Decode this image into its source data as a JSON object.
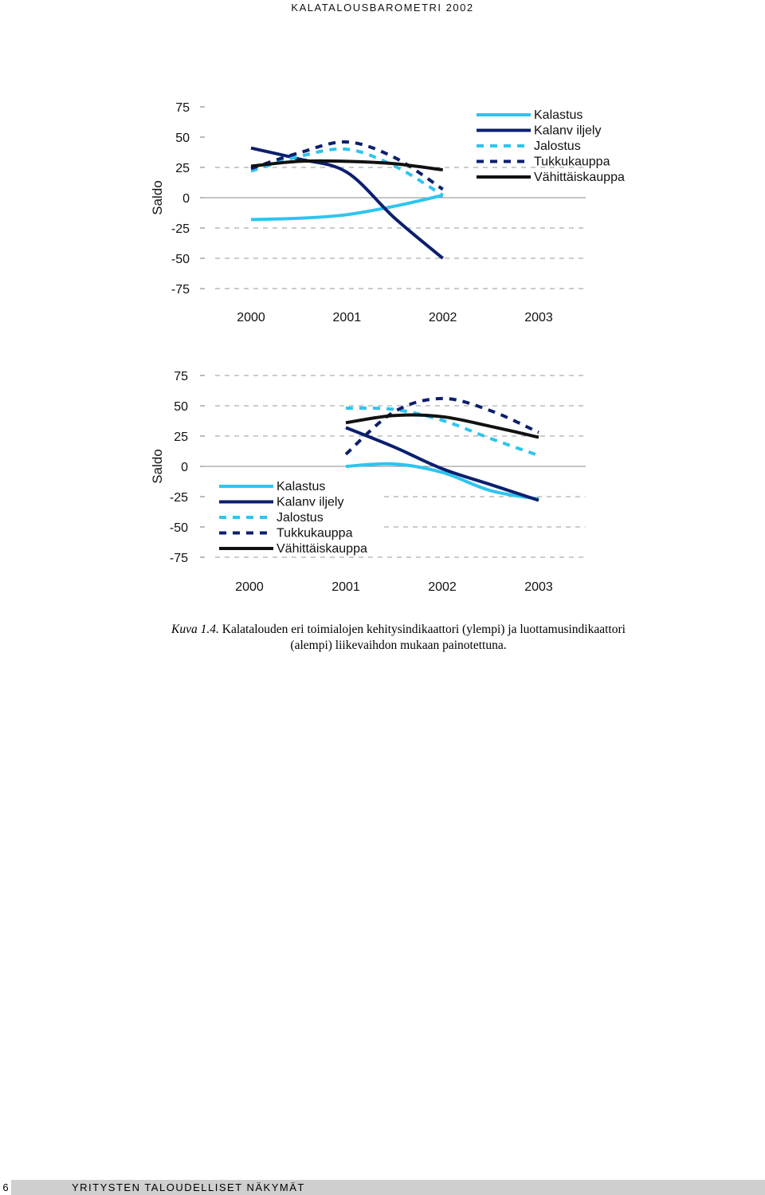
{
  "header": {
    "running_title": "KALATALOUSBAROMETRI 2002"
  },
  "chart_data": [
    {
      "type": "line",
      "ylabel": "Saldo",
      "ylim": [
        -75,
        75
      ],
      "yticks": [
        75,
        50,
        25,
        0,
        -25,
        -50,
        -75
      ],
      "xticks": [
        "2000",
        "2001",
        "2002",
        "2003"
      ],
      "xlim": [
        2000,
        2003
      ],
      "legend_position": "top-right",
      "grid": "dashed horizontal",
      "series": [
        {
          "name": "Kalastus",
          "color": "#2ec4ef",
          "style": "solid",
          "x": [
            2000,
            2000.5,
            2001,
            2001.5,
            2002
          ],
          "values": [
            -18,
            -17,
            -14,
            -7,
            2
          ]
        },
        {
          "name": "Kalanv iljely",
          "color": "#0c1f6e",
          "style": "solid",
          "x": [
            2000,
            2000.5,
            2001,
            2001.5,
            2002
          ],
          "values": [
            41,
            32,
            21,
            -17,
            -50
          ]
        },
        {
          "name": "Jalostus",
          "color": "#2ec4ef",
          "style": "dashed",
          "x": [
            2000,
            2000.5,
            2001,
            2001.5,
            2002
          ],
          "values": [
            22,
            34,
            40,
            26,
            2
          ]
        },
        {
          "name": "Tukkukauppa",
          "color": "#0c1f6e",
          "style": "dashed",
          "x": [
            2000,
            2000.5,
            2001,
            2001.5,
            2002
          ],
          "values": [
            24,
            37,
            46,
            33,
            7
          ]
        },
        {
          "name": "Vähittäiskauppa",
          "color": "#111111",
          "style": "solid",
          "x": [
            2000,
            2000.5,
            2001,
            2001.5,
            2002
          ],
          "values": [
            26,
            30,
            30,
            28,
            23
          ]
        }
      ]
    },
    {
      "type": "line",
      "ylabel": "Saldo",
      "ylim": [
        -75,
        75
      ],
      "yticks": [
        75,
        50,
        25,
        0,
        -25,
        -50,
        -75
      ],
      "xticks": [
        "2000",
        "2001",
        "2002",
        "2003"
      ],
      "xlim": [
        2000,
        2003
      ],
      "legend_position": "center-left",
      "grid": "dashed horizontal",
      "series": [
        {
          "name": "Kalastus",
          "color": "#2ec4ef",
          "style": "solid",
          "x": [
            2001,
            2001.5,
            2002,
            2002.5,
            2003
          ],
          "values": [
            0,
            2,
            -5,
            -20,
            -27
          ]
        },
        {
          "name": "Kalanv iljely",
          "color": "#0c1f6e",
          "style": "solid",
          "x": [
            2001,
            2001.5,
            2002,
            2002.5,
            2003
          ],
          "values": [
            32,
            16,
            -2,
            -15,
            -28
          ]
        },
        {
          "name": "Jalostus",
          "color": "#2ec4ef",
          "style": "dashed",
          "x": [
            2001,
            2001.5,
            2002,
            2002.5,
            2003
          ],
          "values": [
            48,
            47,
            38,
            23,
            9
          ]
        },
        {
          "name": "Tukkukauppa",
          "color": "#0c1f6e",
          "style": "dashed",
          "x": [
            2001,
            2001.5,
            2002,
            2002.5,
            2003
          ],
          "values": [
            10,
            45,
            56,
            46,
            28
          ]
        },
        {
          "name": "Vähittäiskauppa",
          "color": "#111111",
          "style": "solid",
          "x": [
            2001,
            2001.5,
            2002,
            2002.5,
            2003
          ],
          "values": [
            36,
            42,
            41,
            33,
            24
          ]
        }
      ]
    }
  ],
  "caption": {
    "label": "Kuva 1.4.",
    "text": "Kalatalouden eri toimialojen kehitysindikaattori (ylempi) ja luottamusindikaattori (alempi) liikevaihdon mukaan painotettuna."
  },
  "footer": {
    "page_number": "6",
    "title": "YRITYSTEN TALOUDELLISET NÄKYMÄT"
  }
}
